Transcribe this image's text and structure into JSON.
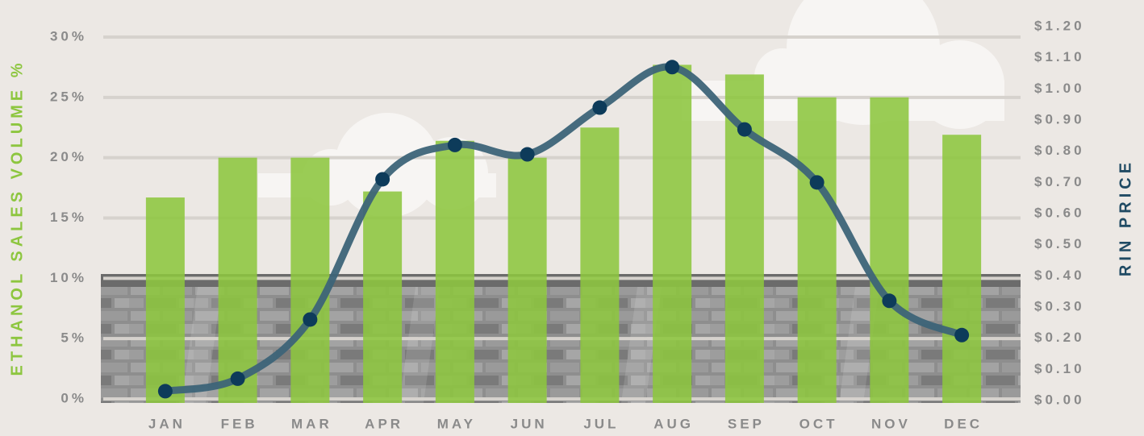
{
  "chart_data": {
    "type": "combo",
    "y_label": "ETHANOL SALES VOLUME %",
    "y2_label": "RIN PRICE",
    "categories": [
      "JAN",
      "FEB",
      "MAR",
      "APR",
      "MAY",
      "JUN",
      "JUL",
      "AUG",
      "SEP",
      "OCT",
      "NOV",
      "DEC"
    ],
    "series": [
      {
        "type": "bar",
        "color": "#8dc63f",
        "values": [
          16.7,
          20,
          20,
          17.2,
          21.4,
          20,
          22.5,
          27.7,
          26.9,
          25,
          25,
          21.9
        ]
      },
      {
        "type": "line",
        "axis": "y2",
        "color": "#3d6478",
        "marker_color": "#0d3b5a",
        "values": [
          0.03,
          0.07,
          0.26,
          0.71,
          0.82,
          0.79,
          0.94,
          1.07,
          0.87,
          0.7,
          0.32,
          0.21
        ]
      }
    ],
    "ylim": [
      0,
      30
    ],
    "yticks": [
      {
        "value": 0,
        "label": "0%"
      },
      {
        "value": 5,
        "label": "5%"
      },
      {
        "value": 10,
        "label": "10%"
      },
      {
        "value": 15,
        "label": "15%"
      },
      {
        "value": 20,
        "label": "20%"
      },
      {
        "value": 25,
        "label": "25%"
      },
      {
        "value": 30,
        "label": "30%"
      }
    ],
    "y2lim": [
      0,
      1.2
    ],
    "y2ticks": [
      {
        "value": 0,
        "label": "$0.00"
      },
      {
        "value": 0.1,
        "label": "$0.10"
      },
      {
        "value": 0.2,
        "label": "$0.20"
      },
      {
        "value": 0.3,
        "label": "$0.30"
      },
      {
        "value": 0.4,
        "label": "$0.40"
      },
      {
        "value": 0.5,
        "label": "$0.50"
      },
      {
        "value": 0.6,
        "label": "$0.60"
      },
      {
        "value": 0.7,
        "label": "$0.70"
      },
      {
        "value": 0.8,
        "label": "$0.80"
      },
      {
        "value": 0.9,
        "label": "$0.90"
      },
      {
        "value": 1.0,
        "label": "$1.00"
      },
      {
        "value": 1.1,
        "label": "$1.10"
      },
      {
        "value": 1.2,
        "label": "$1.20"
      }
    ],
    "grid": true
  }
}
